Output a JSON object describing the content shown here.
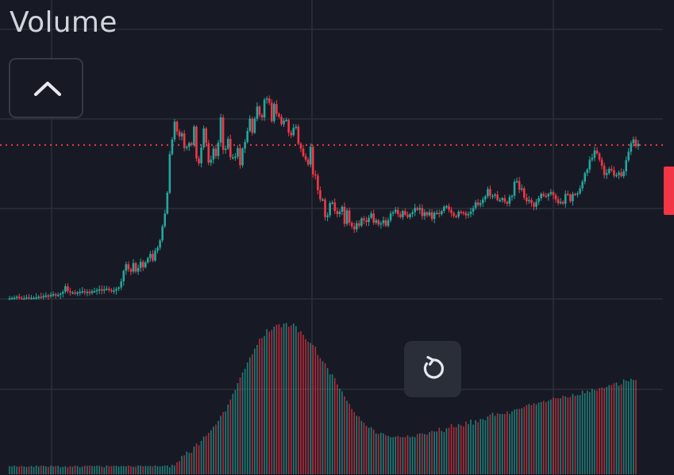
{
  "panel": {
    "title": "Volume"
  },
  "buttons": {
    "collapse": {
      "icon": "chevron-up-icon"
    },
    "reset": {
      "icon": "reset-rotate-icon"
    }
  },
  "colors": {
    "background": "#171a25",
    "grid": "#2b2f3a",
    "up": "#26a69a",
    "down": "#f23645",
    "text": "#d1d4dc"
  },
  "chart_data": {
    "type": "candlestick",
    "ylim": [
      0,
      3.5
    ],
    "last_price_line": 2.53,
    "grid": true,
    "series": [
      {
        "values": [
          0.02,
          0.03,
          0.03,
          0.05,
          0.03,
          0.02,
          0.02,
          0.04,
          0.02,
          0.03,
          0.03,
          0.04,
          0.05,
          0.04,
          0.06,
          0.07,
          0.06,
          0.08,
          0.09,
          0.08,
          0.08,
          0.1,
          0.13,
          0.22,
          0.14,
          0.12,
          0.12,
          0.1,
          0.12,
          0.13,
          0.14,
          0.12,
          0.13,
          0.11,
          0.14,
          0.14,
          0.16,
          0.17,
          0.15,
          0.17,
          0.18,
          0.16,
          0.15,
          0.15,
          0.18,
          0.2,
          0.3,
          0.47,
          0.58,
          0.5,
          0.46,
          0.6,
          0.46,
          0.52,
          0.62,
          0.53,
          0.61,
          0.68,
          0.75,
          0.64,
          0.8,
          0.85,
          0.97,
          1.2,
          1.41,
          1.75,
          2.38,
          2.62,
          2.91,
          2.75,
          2.67,
          2.72,
          2.48,
          2.5,
          2.56,
          2.53,
          2.83,
          2.31,
          2.23,
          2.49,
          2.8,
          2.56,
          2.24,
          2.29,
          2.47,
          2.35,
          2.57,
          2.98,
          2.45,
          2.47,
          2.63,
          2.33,
          2.33,
          2.34,
          2.48,
          2.2,
          2.47,
          2.58,
          2.76,
          2.96,
          2.73,
          2.96,
          3.16,
          3.02,
          2.98,
          3.27,
          3.29,
          3.22,
          2.92,
          3.2,
          3.04,
          2.99,
          2.87,
          2.93,
          2.94,
          2.73,
          2.69,
          2.81,
          2.83,
          2.55,
          2.47,
          2.35,
          2.29,
          2.21,
          2.5,
          2.05,
          2.03,
          1.79,
          1.64,
          1.64,
          1.35,
          1.38,
          1.58,
          1.59,
          1.45,
          1.4,
          1.44,
          1.52,
          1.24,
          1.46,
          1.26,
          1.2,
          1.15,
          1.25,
          1.21,
          1.33,
          1.3,
          1.27,
          1.34,
          1.41,
          1.26,
          1.3,
          1.23,
          1.25,
          1.3,
          1.21,
          1.3,
          1.41,
          1.43,
          1.47,
          1.4,
          1.35,
          1.45,
          1.39,
          1.35,
          1.4,
          1.43,
          1.5,
          1.47,
          1.5,
          1.37,
          1.43,
          1.38,
          1.43,
          1.32,
          1.42,
          1.42,
          1.4,
          1.45,
          1.52,
          1.53,
          1.47,
          1.42,
          1.37,
          1.36,
          1.44,
          1.43,
          1.42,
          1.38,
          1.4,
          1.44,
          1.5,
          1.59,
          1.55,
          1.58,
          1.64,
          1.69,
          1.81,
          1.7,
          1.7,
          1.72,
          1.63,
          1.63,
          1.66,
          1.6,
          1.57,
          1.68,
          1.7,
          1.93,
          1.94,
          1.8,
          1.82,
          1.67,
          1.61,
          1.63,
          1.58,
          1.52,
          1.6,
          1.66,
          1.73,
          1.7,
          1.69,
          1.73,
          1.76,
          1.71,
          1.64,
          1.58,
          1.6,
          1.57,
          1.73,
          1.72,
          1.61,
          1.73,
          1.72,
          1.74,
          1.82,
          1.93,
          2.07,
          2.13,
          2.29,
          2.32,
          2.44,
          2.39,
          2.29,
          2.19,
          2.04,
          2.07,
          2.14,
          2.12,
          2.03,
          2.04,
          2.08,
          2.02,
          2.1,
          2.28,
          2.42,
          2.56,
          2.62,
          2.51,
          2.55
        ]
      },
      {
        "values": [
          0.51,
          0.49,
          0.55,
          0.48,
          0.49,
          0.53,
          0.49,
          0.46,
          0.48,
          0.52,
          0.46,
          0.55,
          0.49,
          0.54,
          0.53,
          0.5,
          0.47,
          0.54,
          0.5,
          0.51,
          0.53,
          0.56,
          0.47,
          0.5,
          0.56,
          0.51,
          0.47,
          0.55,
          0.52,
          0.56,
          0.49,
          0.54,
          0.52,
          0.55,
          0.51,
          0.58,
          0.54,
          0.52,
          0.48,
          0.56,
          0.55,
          0.51,
          0.51,
          0.53,
          0.53,
          0.49,
          0.52,
          0.58,
          0.5,
          0.55,
          0.5,
          0.57,
          0.48,
          0.59,
          0.54,
          0.5,
          0.53,
          0.51,
          0.52,
          0.49,
          0.55,
          0.5,
          0.49,
          0.52,
          0.54,
          0.55,
          0.56,
          0.6,
          0.55,
          0.64,
          0.66,
          0.74,
          0.75,
          0.81,
          0.79,
          0.79,
          0.89,
          0.94,
          0.91,
          0.98,
          1.05,
          1.06,
          1.11,
          1.15,
          1.21,
          1.24,
          1.3,
          1.38,
          1.44,
          1.45,
          1.56,
          1.64,
          1.73,
          1.79,
          1.9,
          1.99,
          2.07,
          2.13,
          2.23,
          2.31,
          2.36,
          2.45,
          2.51,
          2.61,
          2.62,
          2.65,
          2.76,
          2.72,
          2.75,
          2.8,
          2.83,
          2.84,
          2.79,
          2.85,
          2.86,
          2.8,
          2.82,
          2.85,
          2.81,
          2.71,
          2.73,
          2.67,
          2.6,
          2.56,
          2.54,
          2.51,
          2.48,
          2.35,
          2.3,
          2.25,
          2.22,
          2.14,
          2.04,
          2.04,
          1.98,
          1.88,
          1.81,
          1.77,
          1.69,
          1.62,
          1.57,
          1.49,
          1.44,
          1.38,
          1.37,
          1.3,
          1.27,
          1.22,
          1.19,
          1.2,
          1.16,
          1.1,
          1.09,
          1.11,
          1.1,
          1.07,
          1.06,
          1.04,
          1.04,
          1.05,
          1.06,
          1.04,
          1.04,
          1.04,
          1.07,
          1.04,
          1.05,
          1.04,
          1.09,
          1.1,
          1.1,
          1.09,
          1.08,
          1.12,
          1.14,
          1.13,
          1.13,
          1.19,
          1.14,
          1.12,
          1.18,
          1.19,
          1.25,
          1.2,
          1.2,
          1.25,
          1.23,
          1.21,
          1.29,
          1.25,
          1.32,
          1.24,
          1.31,
          1.28,
          1.33,
          1.33,
          1.31,
          1.37,
          1.4,
          1.43,
          1.38,
          1.42,
          1.41,
          1.41,
          1.41,
          1.45,
          1.41,
          1.45,
          1.48,
          1.49,
          1.49,
          1.5,
          1.52,
          1.55,
          1.57,
          1.55,
          1.58,
          1.56,
          1.59,
          1.6,
          1.62,
          1.6,
          1.62,
          1.64,
          1.67,
          1.66,
          1.66,
          1.66,
          1.7,
          1.69,
          1.67,
          1.68,
          1.73,
          1.7,
          1.71,
          1.71,
          1.78,
          1.74,
          1.78,
          1.76,
          1.81,
          1.79,
          1.78,
          1.82,
          1.83,
          1.82,
          1.84,
          1.87,
          1.87,
          1.9,
          1.91,
          1.86,
          1.88,
          1.96,
          1.94,
          1.93,
          1.97,
          1.95,
          1.95
        ]
      }
    ]
  }
}
